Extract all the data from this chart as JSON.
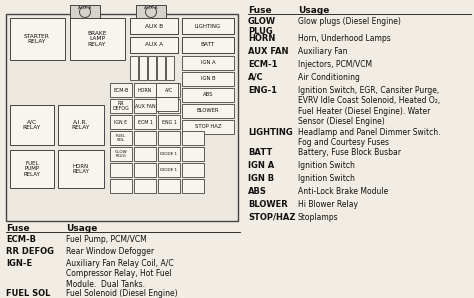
{
  "bg_color": "#f2ede4",
  "box_color": "#f8f5ef",
  "box_edge": "#444444",
  "text_color": "#111111",
  "right_table_header": [
    "Fuse",
    "Usage"
  ],
  "right_table": [
    [
      "GLOW\nPLUG",
      "Glow plugs (Diesel Engine)"
    ],
    [
      "HORN",
      "Horn, Underhood Lamps"
    ],
    [
      "AUX FAN",
      "Auxiliary Fan"
    ],
    [
      "ECM-1",
      "Injectors, PCM/VCM"
    ],
    [
      "A/C",
      "Air Conditioning"
    ],
    [
      "ENG-1",
      "Ignition Switch, EGR, Cansiter Purge,\nEVRV Idle Coast Solenoid, Heated O₂,\nFuel Heater (Diesel Engine). Water\nSensor (Diesel Engine)"
    ],
    [
      "LIGHTING",
      "Headlamp and Panel Dimmer Switch.\nFog and Courtesy Fuses"
    ],
    [
      "BATT",
      "Battery, Fuse Block Busbar"
    ],
    [
      "IGN A",
      "Ignition Switch"
    ],
    [
      "IGN B",
      "Ignition Switch"
    ],
    [
      "ABS",
      "Anti-Lock Brake Module"
    ],
    [
      "BLOWER",
      "Hi Blower Relay"
    ],
    [
      "STOP/HAZ",
      "Stoplamps"
    ]
  ],
  "bottom_table_header": [
    "Fuse",
    "Usage"
  ],
  "bottom_table": [
    [
      "ECM-B",
      "Fuel Pump, PCM/VCM"
    ],
    [
      "RR DEFOG",
      "Rear Window Defogger"
    ],
    [
      "IGN-E",
      "Auxiliary Fan Relay Coil, A/C\nCompressor Relay, Hot Fuel\nModule.  Dual Tanks."
    ],
    [
      "FUEL SOL",
      "Fuel Solenoid (Diesel Engine)"
    ]
  ]
}
